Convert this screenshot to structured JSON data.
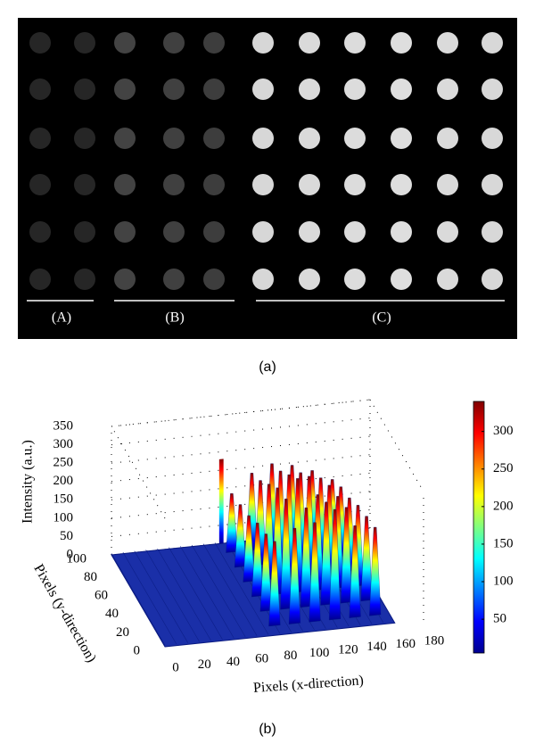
{
  "panel_a": {
    "labels": [
      "(A)",
      "(B)",
      "(C)"
    ],
    "caption": "(a)"
  },
  "panel_b": {
    "caption": "(b)",
    "chart_data": {
      "type": "surface",
      "zlabel": "Intensity (a.u.)",
      "ylabel": "Pixels (y-direction)",
      "xlabel": "Pixels (x-direction)",
      "zlim": [
        0,
        350
      ],
      "zticks": [
        0,
        50,
        100,
        150,
        200,
        250,
        300,
        350
      ],
      "ylim": [
        0,
        100
      ],
      "yticks": [
        0,
        20,
        40,
        60,
        80,
        100
      ],
      "xlim": [
        0,
        180
      ],
      "xticks": [
        0,
        20,
        40,
        60,
        80,
        100,
        120,
        140,
        160,
        180
      ],
      "clim": [
        5,
        340
      ],
      "cticks": [
        50,
        100,
        150,
        200,
        250,
        300
      ]
    }
  }
}
